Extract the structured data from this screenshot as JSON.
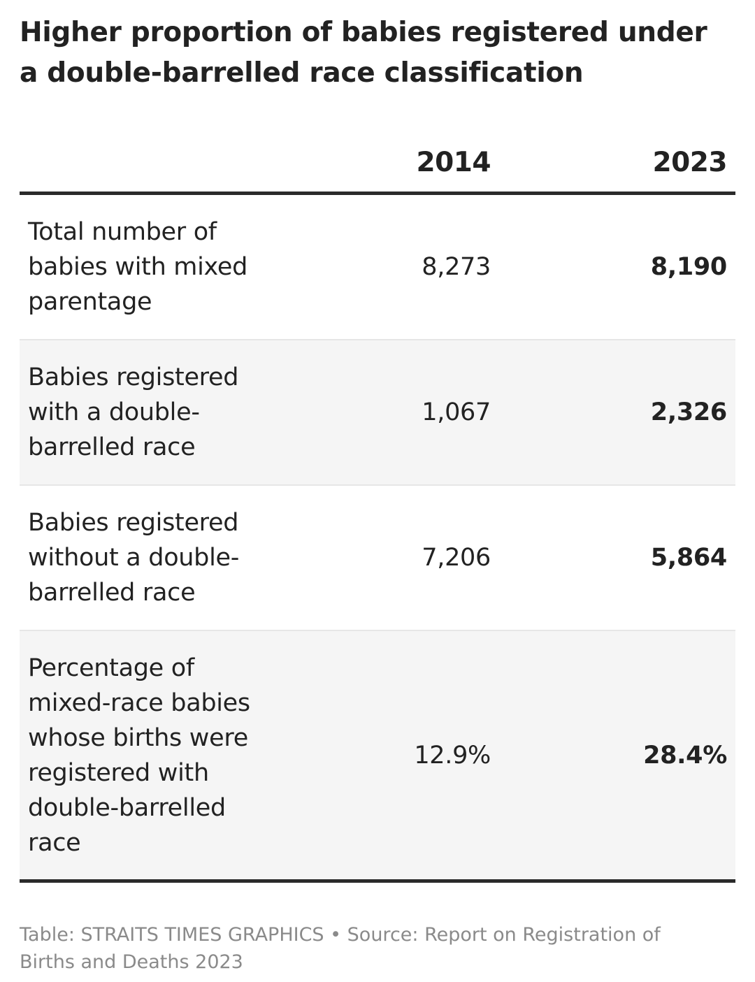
{
  "chart_data": {
    "type": "table",
    "title": "Higher proportion of babies registered under a double-barrelled race classification",
    "columns": [
      "",
      "2014",
      "2023"
    ],
    "rows": [
      {
        "label": "Total number of babies with mixed parentage",
        "v2014": "8,273",
        "v2023": "8,190"
      },
      {
        "label": "Babies registered with a double-barrelled race",
        "v2014": "1,067",
        "v2023": "2,326"
      },
      {
        "label": "Babies registered without a double-barrelled race",
        "v2014": "7,206",
        "v2023": "5,864"
      },
      {
        "label": "Percentage of mixed-race babies whose births were registered with double-barrelled race",
        "v2014": "12.9%",
        "v2023": "28.4%"
      }
    ],
    "footer": "Table: STRAITS TIMES GRAPHICS • Source: Report on Registration of Births and Deaths 2023"
  },
  "colors": {
    "text": "#222222",
    "rule": "#2a2a2a",
    "shaded_row": "#f5f5f5",
    "footer_text": "#8a8a8a"
  }
}
